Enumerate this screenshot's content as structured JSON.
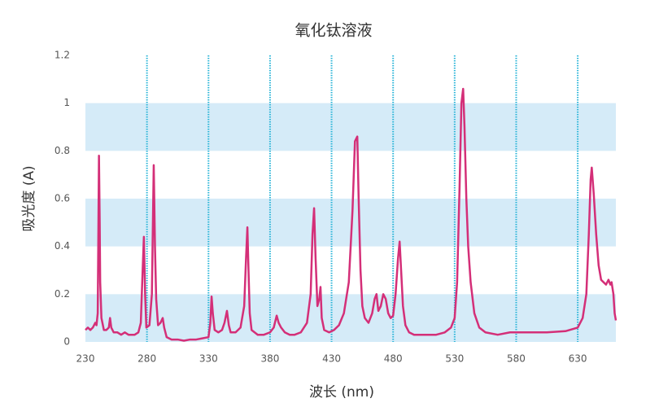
{
  "chart_data": {
    "type": "line",
    "title": "氧化钛溶液",
    "x_label": "波长 (nm)",
    "y_label": "吸光度 (A)",
    "x": [
      230,
      232,
      234,
      236,
      238,
      239,
      240,
      241,
      241.6,
      242,
      243,
      245,
      247,
      249,
      250,
      251,
      253,
      256,
      259,
      262,
      265,
      270,
      273,
      275,
      276.5,
      277.5,
      278.5,
      279.5,
      282,
      284,
      285.5,
      286.5,
      287.5,
      289,
      291,
      292.8,
      294,
      296,
      300,
      305,
      310,
      315,
      320,
      325,
      330,
      331.5,
      332.5,
      333.5,
      335,
      338,
      341,
      343,
      345,
      346.5,
      348,
      352,
      356,
      359,
      360.5,
      361.6,
      362.5,
      363.5,
      365,
      370,
      375,
      380,
      383,
      385.4,
      387,
      389,
      392,
      396,
      400,
      405,
      410,
      413,
      414.5,
      415.8,
      417,
      418.5,
      420,
      421,
      422,
      424,
      428,
      432,
      436,
      440,
      444,
      447,
      449,
      450.9,
      452,
      453.5,
      455,
      457,
      460,
      463,
      465,
      466.5,
      468,
      470,
      472,
      474,
      476,
      478,
      480,
      482,
      484,
      485.3,
      486.5,
      488,
      490,
      493,
      497,
      505,
      515,
      522,
      527,
      530,
      532,
      534,
      535.5,
      536.9,
      538,
      539.5,
      541,
      543,
      546,
      550,
      555,
      565,
      575,
      590,
      605,
      620,
      630,
      634,
      637,
      639,
      640.5,
      641.4,
      643,
      645,
      647,
      649,
      651,
      653,
      655,
      656.5,
      657.5,
      659,
      660,
      661
    ],
    "series": [
      {
        "name": "氧化钛溶液",
        "color": "#d42f78",
        "values": [
          0.05,
          0.06,
          0.05,
          0.06,
          0.08,
          0.07,
          0.12,
          0.78,
          0.5,
          0.25,
          0.1,
          0.05,
          0.05,
          0.06,
          0.1,
          0.06,
          0.04,
          0.04,
          0.03,
          0.04,
          0.03,
          0.03,
          0.04,
          0.08,
          0.3,
          0.44,
          0.2,
          0.06,
          0.07,
          0.2,
          0.74,
          0.4,
          0.18,
          0.07,
          0.08,
          0.1,
          0.06,
          0.02,
          0.01,
          0.01,
          0.005,
          0.01,
          0.01,
          0.015,
          0.02,
          0.08,
          0.19,
          0.12,
          0.05,
          0.04,
          0.05,
          0.08,
          0.13,
          0.07,
          0.04,
          0.04,
          0.06,
          0.15,
          0.35,
          0.48,
          0.3,
          0.12,
          0.05,
          0.03,
          0.03,
          0.04,
          0.06,
          0.11,
          0.08,
          0.06,
          0.04,
          0.03,
          0.03,
          0.04,
          0.08,
          0.2,
          0.45,
          0.56,
          0.35,
          0.15,
          0.18,
          0.23,
          0.1,
          0.05,
          0.04,
          0.05,
          0.07,
          0.12,
          0.25,
          0.55,
          0.84,
          0.86,
          0.6,
          0.3,
          0.15,
          0.1,
          0.08,
          0.12,
          0.18,
          0.2,
          0.13,
          0.15,
          0.2,
          0.18,
          0.12,
          0.1,
          0.11,
          0.2,
          0.35,
          0.42,
          0.3,
          0.15,
          0.07,
          0.04,
          0.03,
          0.03,
          0.03,
          0.04,
          0.06,
          0.1,
          0.25,
          0.65,
          1.0,
          1.06,
          0.9,
          0.6,
          0.4,
          0.25,
          0.12,
          0.06,
          0.04,
          0.03,
          0.04,
          0.04,
          0.04,
          0.045,
          0.06,
          0.1,
          0.2,
          0.45,
          0.68,
          0.73,
          0.62,
          0.45,
          0.32,
          0.26,
          0.25,
          0.24,
          0.26,
          0.24,
          0.25,
          0.2,
          0.12,
          0.09
        ]
      }
    ],
    "xlim": [
      230,
      661
    ],
    "xticks": [
      230,
      280,
      330,
      380,
      430,
      480,
      530,
      580,
      630
    ],
    "ylim": [
      0,
      1.2
    ],
    "yticks": [
      0,
      0.2,
      0.4,
      0.6,
      0.8,
      1,
      1.2
    ],
    "x_grid": true,
    "x_grid_color": "#2bb5d8",
    "y_bands": true,
    "band_color": "#d5ebf8"
  }
}
